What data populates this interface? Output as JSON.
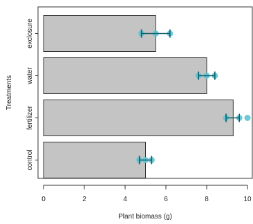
{
  "chart_data": {
    "type": "bar",
    "orientation": "horizontal",
    "xlabel": "Plant biomass (g)",
    "ylabel": "Treatments",
    "xlim": [
      0,
      10
    ],
    "xticks": [
      "0",
      "2",
      "4",
      "6",
      "8",
      "10"
    ],
    "categories": [
      "control",
      "fertilizer",
      "water",
      "exclosure"
    ],
    "values": [
      5.0,
      9.3,
      8.0,
      5.5
    ],
    "errors": [
      {
        "low": 4.7,
        "high": 5.3
      },
      {
        "low": 8.95,
        "high": 9.6
      },
      {
        "low": 7.6,
        "high": 8.4
      },
      {
        "low": 4.8,
        "high": 6.2
      }
    ],
    "points": [
      [
        4.7,
        5.0,
        5.3
      ],
      [
        8.95,
        9.6,
        10.0
      ],
      [
        7.6,
        8.0,
        8.4
      ],
      [
        4.8,
        5.5,
        6.2
      ]
    ],
    "grid": false,
    "colors": {
      "bar_fill": "#c4c4c4",
      "bar_stroke": "#333333",
      "error_bar": "#0e5f6a",
      "point_fill": "#5ec4d4",
      "axis": "#333333"
    }
  }
}
